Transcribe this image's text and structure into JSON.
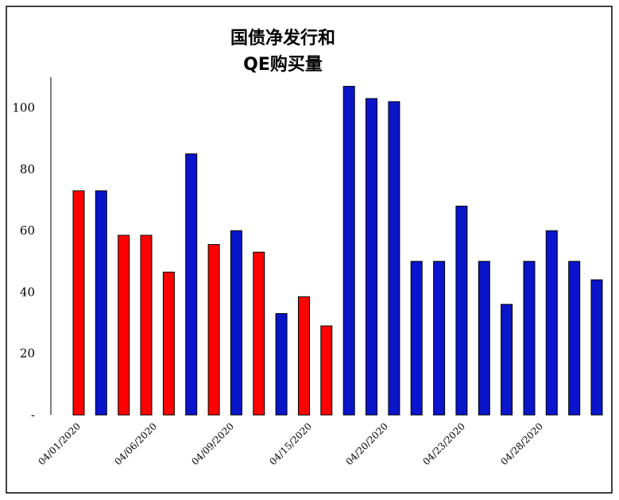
{
  "chart_data": {
    "type": "bar",
    "title_lines": [
      "国债净发行和",
      "QE购买量"
    ],
    "xlabel": "",
    "ylabel": "",
    "ylim": [
      0,
      110
    ],
    "yticks": [
      {
        "value": 0,
        "label": "-"
      },
      {
        "value": 20,
        "label": "20"
      },
      {
        "value": 40,
        "label": "40"
      },
      {
        "value": 60,
        "label": "60"
      },
      {
        "value": 80,
        "label": "80"
      },
      {
        "value": 100,
        "label": "100"
      }
    ],
    "x_tick_labels": [
      "04/01/2020",
      "04/06/2020",
      "04/09/2020",
      "04/15/2020",
      "04/20/2020",
      "04/23/2020",
      "04/28/2020"
    ],
    "grid": false,
    "colors": {
      "red": "#ff0000",
      "blue": "#0a14c8"
    },
    "bars": [
      {
        "color": "red",
        "value": 73
      },
      {
        "color": "blue",
        "value": 73
      },
      {
        "color": "red",
        "value": 58.5
      },
      {
        "color": "red",
        "value": 58.5
      },
      {
        "color": "red",
        "value": 46.5
      },
      {
        "color": "blue",
        "value": 85
      },
      {
        "color": "red",
        "value": 55.5
      },
      {
        "color": "blue",
        "value": 60
      },
      {
        "color": "red",
        "value": 53
      },
      {
        "color": "blue",
        "value": 33
      },
      {
        "color": "red",
        "value": 38.5
      },
      {
        "color": "red",
        "value": 29
      },
      {
        "color": "blue",
        "value": 107
      },
      {
        "color": "blue",
        "value": 103
      },
      {
        "color": "blue",
        "value": 102
      },
      {
        "color": "blue",
        "value": 50
      },
      {
        "color": "blue",
        "value": 50
      },
      {
        "color": "blue",
        "value": 68
      },
      {
        "color": "blue",
        "value": 50
      },
      {
        "color": "blue",
        "value": 36
      },
      {
        "color": "blue",
        "value": 50
      },
      {
        "color": "blue",
        "value": 60
      },
      {
        "color": "blue",
        "value": 50
      },
      {
        "color": "blue",
        "value": 44
      }
    ]
  }
}
